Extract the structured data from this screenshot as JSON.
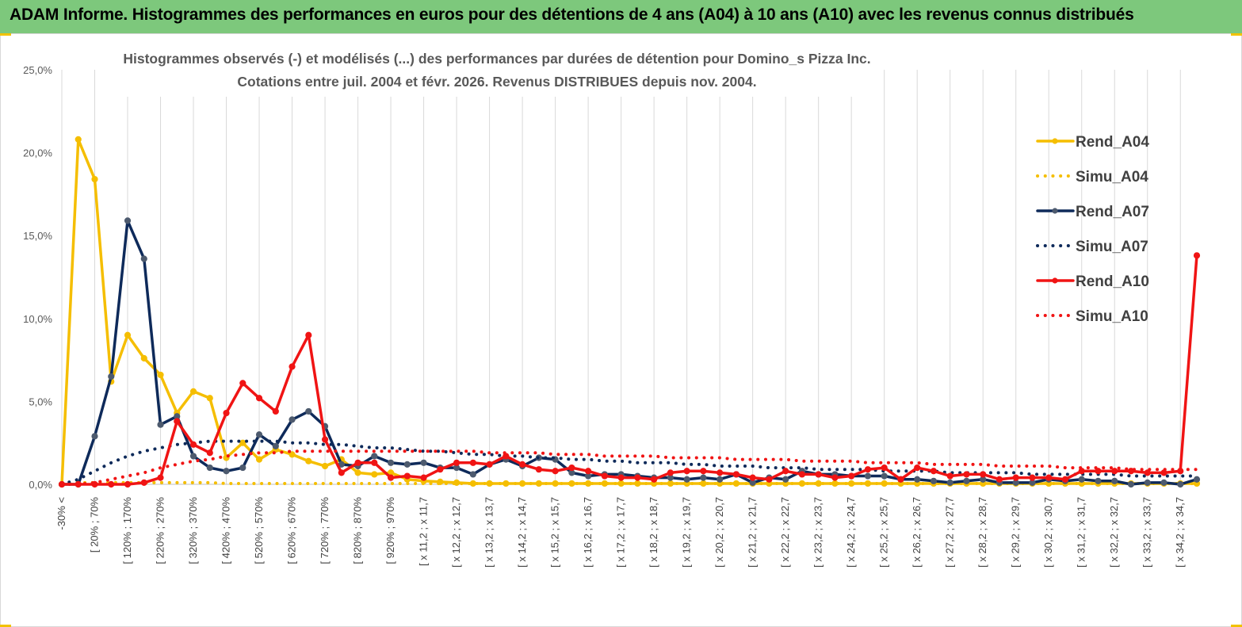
{
  "banner": {
    "title": "ADAM Informe. Histogrammes des performances en euros pour des détentions de 4 ans (A04) à 10 ans (A10) avec les revenus connus distribués"
  },
  "colors": {
    "banner_bg": "#7dc87c",
    "a04": "#f5be00",
    "a07": "#0e2a5a",
    "a07_marker": "#4d5a6e",
    "a10": "#f01414",
    "grid": "#d9d9d9",
    "axis_text": "#595959"
  },
  "chart_data": {
    "type": "line",
    "title": "Histogrammes observés (-) et modélisés (...) des performances par durées de détention pour Domino_s Pizza Inc.",
    "subtitle": "Cotations entre juil. 2004 et févr. 2026. Revenus DISTRIBUES depuis nov. 2004.",
    "xlabel": "",
    "ylabel": "",
    "ylim": [
      0,
      25
    ],
    "yticks": [
      "0,0%",
      "5,0%",
      "10,0%",
      "15,0%",
      "20,0%",
      "25,0%"
    ],
    "grid": true,
    "legend_position": "right",
    "x_labels": [
      "-30% <",
      "[ 20% ; 70%",
      "[ 120% ; 170%",
      "[ 220% ; 270%",
      "[ 320% ; 370%",
      "[ 420% ; 470%",
      "[ 520% ; 570%",
      "[ 620% ; 670%",
      "[ 720% ; 770%",
      "[ 820% ; 870%",
      "[ 920% ; 970%",
      "[ x 11,2 ; x 11,7",
      "[ x 12,2 ; x 12,7",
      "[ x 13,2 ; x 13,7",
      "[ x 14,2 ; x 14,7",
      "[ x 15,2 ; x 15,7",
      "[ x 16,2 ; x 16,7",
      "[ x 17,2 ; x 17,7",
      "[ x 18,2 ; x 18,7",
      "[ x 19,2 ; x 19,7",
      "[ x 20,2 ; x 20,7",
      "[ x 21,2 ; x 21,7",
      "[ x 22,2 ; x 22,7",
      "[ x 23,2 ; x 23,7",
      "[ x 24,2 ; x 24,7",
      "[ x 25,2 ; x 25,7",
      "[ x 26,2 ; x 26,7",
      "[ x 27,2 ; x 27,7",
      "[ x 28,2 ; x 28,7",
      "[ x 29,2 ; x 29,7",
      "[ x 30,2 ; x 30,7",
      "[ x 31,2 ; x 31,7",
      "[ x 32,2 ; x 32,7",
      "[ x 33,2 ; x 33,7",
      "[ x 34,2 ; x 34,7"
    ],
    "n_points": 70,
    "series": [
      {
        "name": "Rend_A04",
        "style": "solid",
        "color": "#f5be00",
        "values": [
          0.0,
          20.8,
          18.4,
          6.2,
          9.0,
          7.6,
          6.6,
          4.3,
          5.6,
          5.2,
          1.6,
          2.5,
          1.5,
          2.1,
          1.8,
          1.4,
          1.1,
          1.5,
          0.7,
          0.6,
          0.7,
          0.3,
          0.2,
          0.15,
          0.1,
          0.05,
          0.05,
          0.05,
          0.05,
          0.05,
          0.05,
          0.05,
          0.05,
          0.05,
          0.05,
          0.05,
          0.05,
          0.05,
          0.05,
          0.05,
          0.05,
          0.05,
          0.05,
          0.05,
          0.05,
          0.05,
          0.05,
          0.05,
          0.05,
          0.05,
          0.05,
          0.05,
          0.05,
          0.05,
          0.05,
          0.05,
          0.05,
          0.05,
          0.05,
          0.05,
          0.05,
          0.05,
          0.05,
          0.05,
          0.05,
          0.05,
          0.05,
          0.05,
          0.05,
          0.05
        ]
      },
      {
        "name": "Simu_A04",
        "style": "dotted",
        "color": "#f5be00",
        "values": [
          0.0,
          0.1,
          0.1,
          0.1,
          0.1,
          0.1,
          0.1,
          0.1,
          0.1,
          0.1,
          0.05,
          0.05,
          0.05,
          0.05,
          0.05,
          0.05,
          0.05,
          0.05,
          0.05,
          0.05,
          0.05,
          0.05,
          0.05,
          0.05,
          0.05,
          0.05,
          0.05,
          0.05,
          0.05,
          0.05,
          0.05,
          0.05,
          0.05,
          0.05,
          0.05,
          0.05,
          0.05,
          0.05,
          0.05,
          0.05,
          0.05,
          0.05,
          0.05,
          0.05,
          0.05,
          0.05,
          0.05,
          0.05,
          0.05,
          0.05,
          0.05,
          0.05,
          0.05,
          0.05,
          0.05,
          0.05,
          0.05,
          0.05,
          0.05,
          0.05,
          0.05,
          0.05,
          0.05,
          0.05,
          0.05,
          0.05,
          0.05,
          0.05,
          0.05,
          0.05
        ]
      },
      {
        "name": "Rend_A07",
        "style": "solid",
        "color": "#0e2a5a",
        "values": [
          0.0,
          0.0,
          2.9,
          6.5,
          15.9,
          13.6,
          3.6,
          4.1,
          1.7,
          1.0,
          0.8,
          1.0,
          3.0,
          2.3,
          3.9,
          4.4,
          3.5,
          1.2,
          1.1,
          1.7,
          1.3,
          1.2,
          1.3,
          1.0,
          1.0,
          0.6,
          1.2,
          1.5,
          1.1,
          1.6,
          1.5,
          0.7,
          0.5,
          0.6,
          0.6,
          0.5,
          0.4,
          0.4,
          0.3,
          0.4,
          0.3,
          0.6,
          0.1,
          0.4,
          0.3,
          0.8,
          0.6,
          0.6,
          0.5,
          0.5,
          0.5,
          0.3,
          0.3,
          0.2,
          0.1,
          0.2,
          0.3,
          0.1,
          0.1,
          0.1,
          0.3,
          0.2,
          0.3,
          0.2,
          0.2,
          0.0,
          0.1,
          0.1,
          0.0,
          0.3
        ]
      },
      {
        "name": "Simu_A07",
        "style": "dotted",
        "color": "#0e2a5a",
        "values": [
          0.0,
          0.3,
          0.8,
          1.3,
          1.7,
          2.0,
          2.2,
          2.4,
          2.5,
          2.6,
          2.6,
          2.6,
          2.6,
          2.6,
          2.5,
          2.5,
          2.4,
          2.4,
          2.3,
          2.2,
          2.2,
          2.1,
          2.0,
          2.0,
          1.9,
          1.8,
          1.8,
          1.7,
          1.7,
          1.6,
          1.6,
          1.5,
          1.5,
          1.4,
          1.4,
          1.3,
          1.3,
          1.3,
          1.2,
          1.2,
          1.1,
          1.1,
          1.1,
          1.0,
          1.0,
          1.0,
          0.9,
          0.9,
          0.9,
          0.9,
          0.8,
          0.8,
          0.8,
          0.8,
          0.7,
          0.7,
          0.7,
          0.7,
          0.7,
          0.6,
          0.6,
          0.6,
          0.6,
          0.6,
          0.6,
          0.5,
          0.5,
          0.5,
          0.5,
          0.5
        ]
      },
      {
        "name": "Rend_A10",
        "style": "solid",
        "color": "#f01414",
        "values": [
          0.0,
          0.0,
          0.0,
          0.0,
          0.0,
          0.1,
          0.4,
          3.8,
          2.4,
          1.9,
          4.3,
          6.1,
          5.2,
          4.4,
          7.1,
          9.0,
          2.7,
          0.7,
          1.3,
          1.3,
          0.4,
          0.5,
          0.4,
          0.9,
          1.3,
          1.3,
          1.2,
          1.7,
          1.2,
          0.9,
          0.8,
          1.0,
          0.8,
          0.5,
          0.4,
          0.4,
          0.3,
          0.7,
          0.8,
          0.8,
          0.7,
          0.6,
          0.4,
          0.3,
          0.8,
          0.6,
          0.6,
          0.4,
          0.5,
          0.9,
          1.0,
          0.3,
          1.0,
          0.8,
          0.5,
          0.6,
          0.6,
          0.3,
          0.4,
          0.4,
          0.4,
          0.3,
          0.8,
          0.8,
          0.8,
          0.8,
          0.7,
          0.7,
          0.8,
          13.8
        ]
      },
      {
        "name": "Simu_A10",
        "style": "dotted",
        "color": "#f01414",
        "values": [
          0.0,
          0.0,
          0.1,
          0.3,
          0.5,
          0.7,
          1.0,
          1.2,
          1.4,
          1.5,
          1.7,
          1.8,
          1.9,
          1.9,
          2.0,
          2.0,
          2.0,
          2.0,
          2.0,
          2.0,
          2.0,
          2.0,
          2.0,
          2.0,
          2.0,
          2.0,
          1.9,
          1.9,
          1.9,
          1.9,
          1.8,
          1.8,
          1.8,
          1.7,
          1.7,
          1.7,
          1.7,
          1.6,
          1.6,
          1.6,
          1.6,
          1.5,
          1.5,
          1.5,
          1.5,
          1.4,
          1.4,
          1.4,
          1.4,
          1.3,
          1.3,
          1.3,
          1.3,
          1.2,
          1.2,
          1.2,
          1.2,
          1.1,
          1.1,
          1.1,
          1.1,
          1.0,
          1.0,
          1.0,
          1.0,
          0.9,
          0.9,
          0.9,
          0.9,
          0.9
        ]
      }
    ]
  }
}
